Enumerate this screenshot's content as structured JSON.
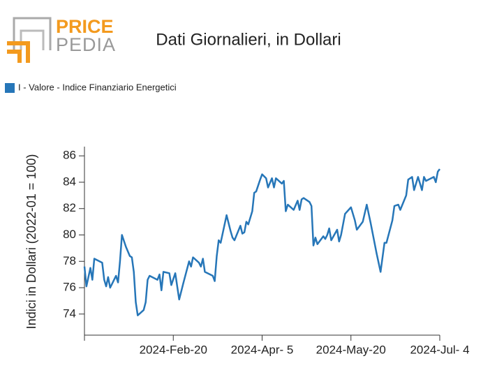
{
  "logo": {
    "top": "PRICE",
    "bottom": "PEDIA"
  },
  "chart_data": {
    "type": "line",
    "title": "Dati Giornalieri, in Dollari",
    "y_label": "Indici in Dollari (2022-01 = 100)",
    "legend": "top-left",
    "x": [
      "2024-01-06",
      "2024-01-07",
      "2024-01-09",
      "2024-01-10",
      "2024-01-11",
      "2024-01-15",
      "2024-01-16",
      "2024-01-17",
      "2024-01-18",
      "2024-01-19",
      "2024-01-20",
      "2024-01-22",
      "2024-01-23",
      "2024-01-24",
      "2024-01-25",
      "2024-01-27",
      "2024-01-29",
      "2024-01-30",
      "2024-01-31",
      "2024-02-01",
      "2024-02-02",
      "2024-02-05",
      "2024-02-06",
      "2024-02-07",
      "2024-02-08",
      "2024-02-12",
      "2024-02-13",
      "2024-02-14",
      "2024-02-15",
      "2024-02-18",
      "2024-02-19",
      "2024-02-21",
      "2024-02-23",
      "2024-02-25",
      "2024-02-28",
      "2024-02-29",
      "2024-03-01",
      "2024-03-04",
      "2024-03-05",
      "2024-03-06",
      "2024-03-07",
      "2024-03-11",
      "2024-03-12",
      "2024-03-13",
      "2024-03-14",
      "2024-03-15",
      "2024-03-18",
      "2024-03-20",
      "2024-03-21",
      "2024-03-22",
      "2024-03-25",
      "2024-03-26",
      "2024-03-27",
      "2024-03-28",
      "2024-03-29",
      "2024-03-31",
      "2024-04-01",
      "2024-04-02",
      "2024-04-04",
      "2024-04-05",
      "2024-04-07",
      "2024-04-08",
      "2024-04-10",
      "2024-04-11",
      "2024-04-12",
      "2024-04-15",
      "2024-04-16",
      "2024-04-17",
      "2024-04-18",
      "2024-04-21",
      "2024-04-23",
      "2024-04-24",
      "2024-04-25",
      "2024-04-26",
      "2024-04-29",
      "2024-04-30",
      "2024-05-01",
      "2024-05-02",
      "2024-05-03",
      "2024-05-06",
      "2024-05-07",
      "2024-05-08",
      "2024-05-09",
      "2024-05-10",
      "2024-05-13",
      "2024-05-14",
      "2024-05-15",
      "2024-05-17",
      "2024-05-20",
      "2024-05-21",
      "2024-05-22",
      "2024-05-23",
      "2024-05-26",
      "2024-05-28",
      "2024-05-30",
      "2024-06-02",
      "2024-06-04",
      "2024-06-06",
      "2024-06-07",
      "2024-06-10",
      "2024-06-11",
      "2024-06-13",
      "2024-06-14",
      "2024-06-17",
      "2024-06-18",
      "2024-06-20",
      "2024-06-21",
      "2024-06-23",
      "2024-06-25",
      "2024-06-26",
      "2024-06-27",
      "2024-07-01",
      "2024-07-02",
      "2024-07-03",
      "2024-07-04"
    ],
    "series": [
      {
        "name": "I - Valore - Indice Finanziario Energetici",
        "color": "#2676b8",
        "values": [
          77.6,
          76.1,
          77.5,
          76.6,
          78.2,
          77.9,
          76.6,
          76.1,
          76.8,
          76.0,
          76.3,
          76.9,
          76.4,
          78.0,
          80.0,
          79.1,
          78.4,
          78.3,
          77.2,
          74.9,
          73.9,
          74.3,
          74.9,
          76.6,
          76.9,
          76.6,
          77.0,
          75.8,
          77.2,
          77.1,
          76.2,
          77.1,
          75.1,
          76.3,
          78.0,
          77.6,
          78.3,
          77.9,
          77.6,
          78.2,
          77.2,
          76.9,
          76.5,
          78.4,
          79.6,
          79.4,
          81.5,
          80.3,
          79.8,
          79.6,
          80.7,
          80.1,
          80.2,
          81.0,
          80.8,
          81.8,
          83.2,
          83.3,
          84.2,
          84.6,
          84.3,
          83.6,
          84.3,
          83.6,
          84.3,
          83.9,
          84.1,
          81.8,
          82.3,
          81.9,
          82.6,
          81.9,
          82.7,
          82.8,
          82.5,
          82.2,
          79.2,
          79.8,
          79.3,
          79.9,
          79.7,
          80.0,
          80.5,
          79.6,
          80.4,
          79.5,
          80.0,
          81.6,
          82.1,
          81.6,
          81.1,
          80.4,
          81.0,
          82.3,
          80.9,
          78.6,
          77.2,
          79.4,
          79.4,
          81.1,
          82.2,
          82.3,
          81.9,
          83.0,
          84.2,
          84.4,
          83.4,
          84.4,
          83.4,
          84.4,
          84.1,
          84.4,
          84.0,
          84.8,
          85.0
        ]
      }
    ],
    "xlim": [
      "2024-01-06",
      "2024-07-04"
    ],
    "xticks": [
      {
        "value": "2024-02-20",
        "label": "2024-Feb-20"
      },
      {
        "value": "2024-04-05",
        "label": "2024-Apr- 5"
      },
      {
        "value": "2024-05-20",
        "label": "2024-May-20"
      },
      {
        "value": "2024-07-04",
        "label": "2024-Jul- 4"
      }
    ],
    "ylim": [
      72.4,
      86.7
    ],
    "yticks": [
      74,
      76,
      78,
      80,
      82,
      84,
      86
    ],
    "grid": false
  }
}
